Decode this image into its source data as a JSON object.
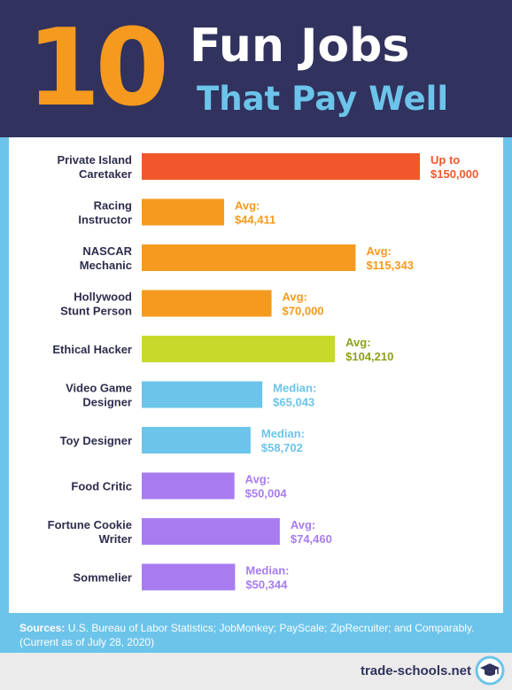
{
  "header": {
    "number": "10",
    "title_line1": "Fun Jobs",
    "title_line2": "That Pay Well"
  },
  "colors": {
    "navy": "#31325e",
    "orange": "#f59a1e",
    "light_blue": "#6cc4ea",
    "red": "#f2572b",
    "lime": "#c8d92b",
    "purple": "#a87cf0"
  },
  "chart_data": {
    "type": "bar",
    "orientation": "horizontal",
    "categories": [
      [
        "Private Island",
        "Caretaker"
      ],
      [
        "Racing",
        "Instructor"
      ],
      [
        "NASCAR",
        "Mechanic"
      ],
      [
        "Hollywood",
        "Stunt Person"
      ],
      [
        "Ethical Hacker"
      ],
      [
        "Video Game",
        "Designer"
      ],
      [
        "Toy Designer"
      ],
      [
        "Food Critic"
      ],
      [
        "Fortune Cookie",
        "Writer"
      ],
      [
        "Sommelier"
      ]
    ],
    "values": [
      150000,
      44411,
      115343,
      70000,
      104210,
      65043,
      58702,
      50004,
      74460,
      50344
    ],
    "value_labels": [
      [
        "Up to",
        "$150,000"
      ],
      [
        "Avg:",
        "$44,411"
      ],
      [
        "Avg:",
        "$115,343"
      ],
      [
        "Avg:",
        "$70,000"
      ],
      [
        "Avg:",
        "$104,210"
      ],
      [
        "Median:",
        "$65,043"
      ],
      [
        "Median:",
        "$58,702"
      ],
      [
        "Avg:",
        "$50,004"
      ],
      [
        "Avg:",
        "$74,460"
      ],
      [
        "Median:",
        "$50,344"
      ]
    ],
    "bar_colors": [
      "#f2572b",
      "#f59a1e",
      "#f59a1e",
      "#f59a1e",
      "#c8d92b",
      "#6cc4ea",
      "#6cc4ea",
      "#a87cf0",
      "#a87cf0",
      "#a87cf0"
    ],
    "label_colors": [
      "#f2572b",
      "#f59a1e",
      "#f59a1e",
      "#f59a1e",
      "#8ea01c",
      "#6cc4ea",
      "#6cc4ea",
      "#a87cf0",
      "#a87cf0",
      "#a87cf0"
    ],
    "xlim": [
      0,
      150000
    ],
    "grid": false,
    "legend": "none"
  },
  "sources": {
    "label": "Sources:",
    "text": " U.S. Bureau of Labor Statistics; JobMonkey; PayScale; ZipRecruiter; and Comparably. (Current as of July 28, 2020)"
  },
  "footer": {
    "site": "trade-schools.net"
  }
}
